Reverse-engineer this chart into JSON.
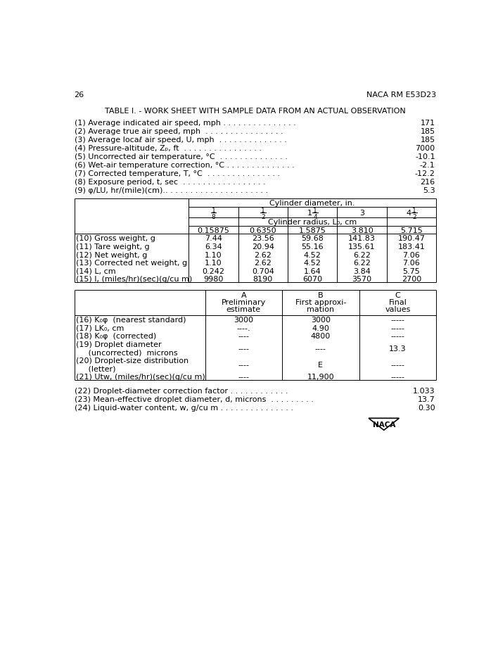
{
  "page_num": "26",
  "header_right": "NACA RM E53D23",
  "title": "TABLE I. - WORK SHEET WITH SAMPLE DATA FROM AN ACTUAL OBSERVATION",
  "items_1_9": [
    {
      "num": "(1)",
      "label": "Average indicated air speed, mph",
      "dots": " . . . . . . . . . . . . . . .",
      "value": "171"
    },
    {
      "num": "(2)",
      "label": "Average true air speed, mph",
      "dots": "  . . . . . . . . . . . . . . . .",
      "value": "185"
    },
    {
      "num": "(3)",
      "label": "Average locaℓ air speed, U, mph",
      "dots": "  . . . . . . . . . . . . . .",
      "value": "185"
    },
    {
      "num": "(4)",
      "label": "Pressure-altitude, Zₚ, ft",
      "dots": "  . . . . . . . . . . . . . . . .",
      "value": "7000"
    },
    {
      "num": "(5)",
      "label": "Uncorrected air temperature, °C",
      "dots": "  . . . . . . . . . . . . . .",
      "value": "-10.1"
    },
    {
      "num": "(6)",
      "label": "Wet-air temperature correction, °C",
      "dots": " . . . . . . . . . . . . . .",
      "value": "-2.1"
    },
    {
      "num": "(7)",
      "label": "Corrected temperature, T, °C",
      "dots": "  . . . . . . . . . . . . . . .",
      "value": "-12.2"
    },
    {
      "num": "(8)",
      "label": "Exposure period, t, sec",
      "dots": "  . . . . . . . . . . . . . . . . .",
      "value": "216"
    },
    {
      "num": "(9)",
      "label": "φ/LU, hr/(mile)(cm).",
      "dots": ". . . . . . . . . . . . . . . . . . . . .",
      "value": "5.3"
    }
  ],
  "table1_col_headers_radius": [
    "0.15875",
    "0.6350",
    "1.5875",
    "3.810",
    "5.715"
  ],
  "table1_rows": [
    {
      "num": "(10)",
      "label": "Gross weight, g",
      "vals": [
        "7.44",
        "23.56",
        "59.68",
        "141.83",
        "190.47"
      ]
    },
    {
      "num": "(11)",
      "label": "Tare weight, g",
      "vals": [
        "6.34",
        "20.94",
        "55.16",
        "135.61",
        "183.41"
      ]
    },
    {
      "num": "(12)",
      "label": "Net weight, g",
      "vals": [
        "1.10",
        "2.62",
        "4.52",
        "6.22",
        "7.06"
      ]
    },
    {
      "num": "(13)",
      "label": "Corrected net weight, g",
      "vals": [
        "1.10",
        "2.62",
        "4.52",
        "6.22",
        "7.06"
      ]
    },
    {
      "num": "(14)",
      "label": "L, cm",
      "vals": [
        "0.242",
        "0.704",
        "1.64",
        "3.84",
        "5.75"
      ]
    },
    {
      "num": "(15)",
      "label": "I, (miles/hr)(sec)(g/cu m)",
      "vals": [
        "9980",
        "8190",
        "6070",
        "3570",
        "2700"
      ]
    }
  ],
  "table2_col_headers": [
    {
      "letter": "A",
      "line2": "Preliminary",
      "line3": "estimate"
    },
    {
      "letter": "B",
      "line2": "First approxi-",
      "line3": "mation"
    },
    {
      "letter": "C",
      "line2": "Final",
      "line3": "values"
    }
  ],
  "table2_rows": [
    {
      "num": "(16)",
      "label": "K₀φ  (nearest standard)",
      "label2": "",
      "vals": [
        "3000",
        "3000",
        "-----"
      ]
    },
    {
      "num": "(17)",
      "label": "LK₀, cm",
      "label2": "",
      "vals": [
        "----.",
        "4.90",
        "-----"
      ]
    },
    {
      "num": "(18)",
      "label": "K₀φ  (corrected)",
      "label2": "",
      "vals": [
        "----",
        "4800",
        "-----"
      ]
    },
    {
      "num": "(19)",
      "label": "Droplet diameter",
      "label2": "     (uncorrected)  microns",
      "vals": [
        "----",
        "----",
        "13.3"
      ]
    },
    {
      "num": "(20)",
      "label": "Droplet-size distribution",
      "label2": "     (letter)",
      "vals": [
        "----",
        "E",
        "-----"
      ]
    },
    {
      "num": "(21)",
      "label": "Utw, (miles/hr)(sec)(g/cu m)",
      "label2": "",
      "vals": [
        "----",
        "11,900",
        "-----"
      ]
    }
  ],
  "items_22_24": [
    {
      "num": "(22)",
      "label": "Droplet-diameter correction factor",
      "dots": " . . . . . . . . . . . .",
      "value": "1.033"
    },
    {
      "num": "(23)",
      "label": "Mean-effective droplet diameter, d, microns",
      "dots": "  . . . . . . . . .",
      "value": "13.7"
    },
    {
      "num": "(24)",
      "label": "Liquid-water content, w, g/cu m",
      "dots": " . . . . . . . . . . . . . . .",
      "value": "0.30"
    }
  ],
  "font_size": 8.0,
  "bg_color": "#ffffff"
}
